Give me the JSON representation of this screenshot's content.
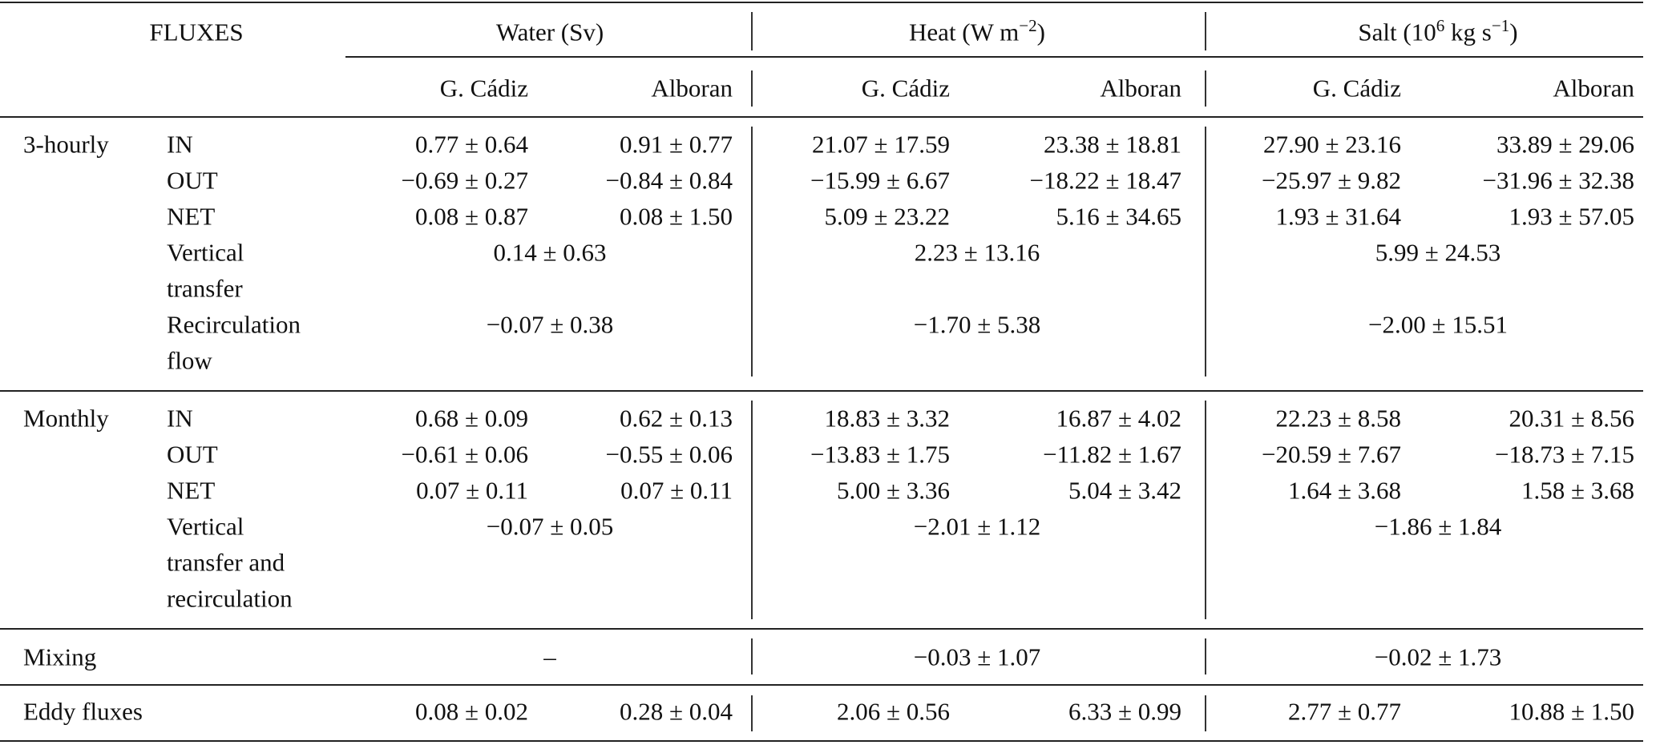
{
  "header": {
    "fluxes": "FLUXES",
    "groups": [
      {
        "name": "water",
        "parts": [
          [
            "Water (Sv)",
            ""
          ]
        ]
      },
      {
        "name": "heat",
        "parts": [
          [
            "Heat (W m",
            ""
          ],
          [
            "−2",
            "sup"
          ],
          [
            ")",
            ""
          ]
        ]
      },
      {
        "name": "salt",
        "parts": [
          [
            "Salt (10",
            ""
          ],
          [
            "6",
            "sup"
          ],
          [
            " kg s",
            ""
          ],
          [
            "−1",
            "sup"
          ],
          [
            ")",
            ""
          ]
        ]
      }
    ],
    "subcolumns": [
      "G. Cádiz",
      "Alboran",
      "G. Cádiz",
      "Alboran",
      "G. Cádiz",
      "Alboran"
    ]
  },
  "sections": [
    {
      "label": "3-hourly",
      "rows": [
        {
          "label": [
            "IN"
          ],
          "values": [
            "0.77 ± 0.64",
            "0.91 ± 0.77",
            "21.07 ± 17.59",
            "23.38 ± 18.81",
            "27.90 ± 23.16",
            "33.89 ± 29.06"
          ]
        },
        {
          "label": [
            "OUT"
          ],
          "values": [
            "−0.69 ± 0.27",
            "−0.84 ± 0.84",
            "−15.99 ± 6.67",
            "−18.22 ± 18.47",
            "−25.97 ± 9.82",
            "−31.96 ± 32.38"
          ]
        },
        {
          "label": [
            "NET"
          ],
          "values": [
            "0.08 ± 0.87",
            "0.08 ± 1.50",
            "5.09 ± 23.22",
            "5.16 ± 34.65",
            "1.93 ± 31.64",
            "1.93 ± 57.05"
          ]
        },
        {
          "label": [
            "Vertical",
            "transfer"
          ],
          "merged": [
            "0.14 ± 0.63",
            "2.23 ± 13.16",
            "5.99 ± 24.53"
          ]
        },
        {
          "label": [
            "Recirculation",
            "flow"
          ],
          "merged": [
            "−0.07 ± 0.38",
            "−1.70 ± 5.38",
            "−2.00 ± 15.51"
          ]
        }
      ]
    },
    {
      "label": "Monthly",
      "rows": [
        {
          "label": [
            "IN"
          ],
          "values": [
            "0.68 ± 0.09",
            "0.62 ± 0.13",
            "18.83 ± 3.32",
            "16.87 ± 4.02",
            "22.23 ± 8.58",
            "20.31 ± 8.56"
          ]
        },
        {
          "label": [
            "OUT"
          ],
          "values": [
            "−0.61 ± 0.06",
            "−0.55 ± 0.06",
            "−13.83 ± 1.75",
            "−11.82 ± 1.67",
            "−20.59 ± 7.67",
            "−18.73 ± 7.15"
          ]
        },
        {
          "label": [
            "NET"
          ],
          "values": [
            "0.07 ± 0.11",
            "0.07 ± 0.11",
            "5.00 ± 3.36",
            "5.04 ± 3.42",
            "1.64 ± 3.68",
            "1.58 ± 3.68"
          ]
        },
        {
          "label": [
            "Vertical",
            "transfer and",
            "recirculation"
          ],
          "merged": [
            "−0.07 ± 0.05",
            "−2.01 ± 1.12",
            "−1.86 ± 1.84"
          ]
        }
      ]
    },
    {
      "label": "Mixing",
      "rows": [
        {
          "label": [],
          "merged": [
            "–",
            "−0.03 ± 1.07",
            "−0.02 ± 1.73"
          ]
        }
      ]
    },
    {
      "label": "Eddy fluxes",
      "rows": [
        {
          "label": [],
          "values": [
            "0.08 ± 0.02",
            "0.28 ± 0.04",
            "2.06 ± 0.56",
            "6.33 ± 0.99",
            "2.77 ± 0.77",
            "10.88 ± 1.50"
          ]
        }
      ]
    }
  ]
}
